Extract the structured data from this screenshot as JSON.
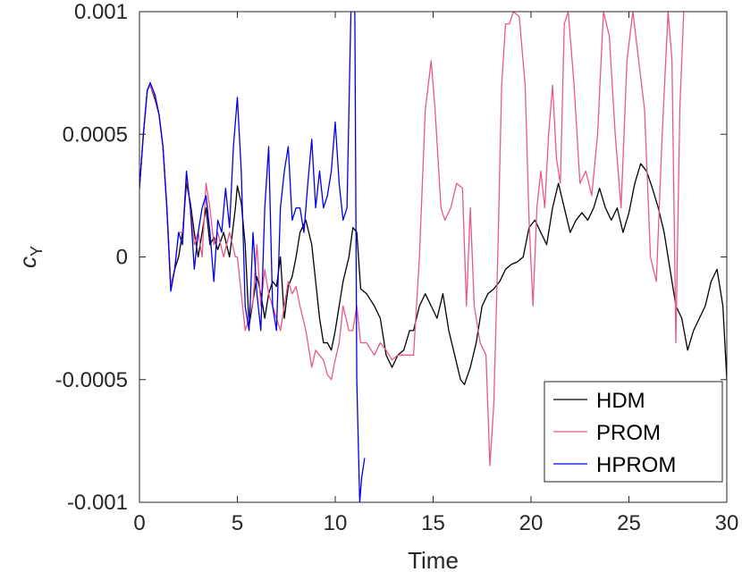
{
  "chart_data": {
    "type": "line",
    "xlabel": "Time",
    "ylabel_base": "c",
    "ylabel_sub": "Y",
    "xlim": [
      0,
      30
    ],
    "ylim": [
      -0.001,
      0.001
    ],
    "xticks": [
      0,
      5,
      10,
      15,
      20,
      25,
      30
    ],
    "xtick_labels": [
      "0",
      "5",
      "10",
      "15",
      "20",
      "25",
      "30"
    ],
    "yticks": [
      -0.001,
      -0.0005,
      0,
      0.0005,
      0.001
    ],
    "ytick_labels": [
      "-0.001",
      "-0.0005",
      "0",
      "0.0005",
      "0.001"
    ],
    "grid": false,
    "legend_position": "bottom-right",
    "series": [
      {
        "name": "HDM",
        "color": "#000000",
        "points": [
          [
            0,
            0.00028
          ],
          [
            0.2,
            0.0005
          ],
          [
            0.4,
            0.00068
          ],
          [
            0.55,
            0.0007
          ],
          [
            0.8,
            0.00064
          ],
          [
            1.0,
            0.00058
          ],
          [
            1.2,
            0.00045
          ],
          [
            1.4,
            0.0002
          ],
          [
            1.6,
            -0.00012
          ],
          [
            1.8,
            -5e-05
          ],
          [
            2.0,
            0.0
          ],
          [
            2.2,
            0.0001
          ],
          [
            2.4,
            0.0003
          ],
          [
            2.6,
            0.00022
          ],
          [
            2.8,
            0.0001
          ],
          [
            3.0,
            0.0
          ],
          [
            3.2,
            0.0001
          ],
          [
            3.4,
            0.0002
          ],
          [
            3.6,
            5e-05
          ],
          [
            3.8,
            8e-05
          ],
          [
            4.0,
            3e-05
          ],
          [
            4.3,
            0.0001
          ],
          [
            4.6,
            0.0
          ],
          [
            4.9,
            0.0002
          ],
          [
            5.0,
            0.00029
          ],
          [
            5.2,
            0.00022
          ],
          [
            5.4,
            5e-05
          ],
          [
            5.6,
            -0.00028
          ],
          [
            5.8,
            -0.00018
          ],
          [
            6.0,
            -8e-05
          ],
          [
            6.2,
            -0.00015
          ],
          [
            6.4,
            -0.00025
          ],
          [
            6.6,
            -0.00015
          ],
          [
            6.8,
            -0.0001
          ],
          [
            7.0,
            -0.00012
          ],
          [
            7.2,
            0.0
          ],
          [
            7.4,
            -0.00025
          ],
          [
            7.6,
            -0.00012
          ],
          [
            7.8,
            -8e-05
          ],
          [
            8.0,
            0.0
          ],
          [
            8.2,
            0.0001
          ],
          [
            8.5,
            0.00015
          ],
          [
            8.8,
            5e-05
          ],
          [
            9.0,
            -0.0001
          ],
          [
            9.2,
            -0.00025
          ],
          [
            9.4,
            -0.00035
          ],
          [
            9.6,
            -0.00035
          ],
          [
            9.8,
            -0.00038
          ],
          [
            10.0,
            -0.0003
          ],
          [
            10.2,
            -0.0002
          ],
          [
            10.4,
            -0.0001
          ],
          [
            10.7,
            0.0
          ],
          [
            10.9,
            0.00012
          ],
          [
            11.1,
            0.0001
          ],
          [
            11.3,
            -0.00013
          ],
          [
            11.6,
            -0.00015
          ],
          [
            12.0,
            -0.0002
          ],
          [
            12.3,
            -0.00025
          ],
          [
            12.6,
            -0.0004
          ],
          [
            12.9,
            -0.00045
          ],
          [
            13.2,
            -0.0004
          ],
          [
            13.5,
            -0.00038
          ],
          [
            13.8,
            -0.0003
          ],
          [
            14.0,
            -0.0003
          ],
          [
            14.3,
            -0.0002
          ],
          [
            14.6,
            -0.00015
          ],
          [
            14.9,
            -0.0002
          ],
          [
            15.2,
            -0.00025
          ],
          [
            15.5,
            -0.00015
          ],
          [
            15.8,
            -0.0003
          ],
          [
            16.1,
            -0.0004
          ],
          [
            16.4,
            -0.0005
          ],
          [
            16.6,
            -0.00052
          ],
          [
            16.9,
            -0.00045
          ],
          [
            17.2,
            -0.00035
          ],
          [
            17.5,
            -0.0002
          ],
          [
            17.8,
            -0.00015
          ],
          [
            18.1,
            -0.00013
          ],
          [
            18.4,
            -0.0001
          ],
          [
            18.7,
            -5e-05
          ],
          [
            19.0,
            -3e-05
          ],
          [
            19.3,
            -2e-05
          ],
          [
            19.6,
            0.0
          ],
          [
            19.9,
            0.00012
          ],
          [
            20.2,
            0.00015
          ],
          [
            20.5,
            0.0001
          ],
          [
            20.8,
            5e-05
          ],
          [
            21.1,
            0.0002
          ],
          [
            21.4,
            0.0003
          ],
          [
            21.7,
            0.0002
          ],
          [
            22.0,
            0.0001
          ],
          [
            22.3,
            0.00015
          ],
          [
            22.6,
            0.00018
          ],
          [
            22.9,
            0.00015
          ],
          [
            23.2,
            0.0002
          ],
          [
            23.5,
            0.00028
          ],
          [
            23.8,
            0.0002
          ],
          [
            24.1,
            0.00015
          ],
          [
            24.4,
            0.0002
          ],
          [
            24.7,
            0.0001
          ],
          [
            25.0,
            0.00018
          ],
          [
            25.3,
            0.0003
          ],
          [
            25.6,
            0.00038
          ],
          [
            25.9,
            0.00035
          ],
          [
            26.2,
            0.00028
          ],
          [
            26.5,
            0.0002
          ],
          [
            26.8,
            0.0001
          ],
          [
            27.1,
            -5e-05
          ],
          [
            27.4,
            -0.0002
          ],
          [
            27.7,
            -0.00025
          ],
          [
            28.0,
            -0.00038
          ],
          [
            28.3,
            -0.0003
          ],
          [
            28.6,
            -0.00025
          ],
          [
            28.9,
            -0.0002
          ],
          [
            29.2,
            -0.0001
          ],
          [
            29.5,
            -5e-05
          ],
          [
            29.8,
            -0.0002
          ],
          [
            30.0,
            -0.0005
          ]
        ]
      },
      {
        "name": "PROM",
        "color": "#e8588e",
        "points": [
          [
            0,
            0.00028
          ],
          [
            0.2,
            0.0005
          ],
          [
            0.4,
            0.00068
          ],
          [
            0.55,
            0.0007
          ],
          [
            0.8,
            0.00065
          ],
          [
            1.0,
            0.00058
          ],
          [
            1.2,
            0.00045
          ],
          [
            1.4,
            0.0002
          ],
          [
            1.6,
            -0.00012
          ],
          [
            1.8,
            -5e-05
          ],
          [
            2.0,
            0.0001
          ],
          [
            2.2,
            0.0001
          ],
          [
            2.4,
            0.00033
          ],
          [
            2.6,
            0.0002
          ],
          [
            2.8,
            5e-05
          ],
          [
            3.0,
            0.0001
          ],
          [
            3.2,
            0.0
          ],
          [
            3.4,
            0.0003
          ],
          [
            3.6,
            0.0002
          ],
          [
            3.8,
            5e-05
          ],
          [
            4.0,
            0.0001
          ],
          [
            4.3,
            0.0
          ],
          [
            4.6,
            0.0001
          ],
          [
            4.9,
            0.0
          ],
          [
            5.0,
            0.0
          ],
          [
            5.2,
            -0.00015
          ],
          [
            5.4,
            -0.0003
          ],
          [
            5.6,
            -0.00025
          ],
          [
            5.8,
            -0.00018
          ],
          [
            6.0,
            5e-05
          ],
          [
            6.2,
            -0.0002
          ],
          [
            6.4,
            -5e-05
          ],
          [
            6.6,
            -0.00015
          ],
          [
            6.8,
            -0.0002
          ],
          [
            7.0,
            -0.00025
          ],
          [
            7.2,
            -0.0003
          ],
          [
            7.4,
            -0.0002
          ],
          [
            7.6,
            -0.0001
          ],
          [
            7.8,
            -0.00015
          ],
          [
            8.0,
            -0.00012
          ],
          [
            8.2,
            -0.0002
          ],
          [
            8.5,
            -0.0003
          ],
          [
            8.8,
            -0.00045
          ],
          [
            9.0,
            -0.00038
          ],
          [
            9.2,
            -0.0004
          ],
          [
            9.4,
            -0.00042
          ],
          [
            9.6,
            -0.00048
          ],
          [
            9.8,
            -0.0005
          ],
          [
            10.0,
            -0.00042
          ],
          [
            10.2,
            -0.00035
          ],
          [
            10.4,
            -0.0002
          ],
          [
            10.7,
            -0.0003
          ],
          [
            10.9,
            -0.0003
          ],
          [
            11.1,
            -0.0002
          ],
          [
            11.3,
            -0.00035
          ],
          [
            11.6,
            -0.00035
          ],
          [
            12.0,
            -0.0004
          ],
          [
            12.3,
            -0.00035
          ],
          [
            12.6,
            -0.00038
          ],
          [
            12.9,
            -0.00042
          ],
          [
            13.2,
            -0.0004
          ],
          [
            13.5,
            -0.0004
          ],
          [
            13.8,
            -0.0004
          ],
          [
            14.0,
            -0.0004
          ],
          [
            14.3,
            0.0
          ],
          [
            14.6,
            0.0006
          ],
          [
            14.9,
            0.0008
          ],
          [
            15.1,
            0.0006
          ],
          [
            15.4,
            0.0002
          ],
          [
            15.6,
            0.00015
          ],
          [
            15.9,
            0.0002
          ],
          [
            16.2,
            0.0003
          ],
          [
            16.5,
            0.00028
          ],
          [
            16.7,
            -0.0002
          ],
          [
            16.9,
            0.0002
          ],
          [
            17.1,
            -0.0002
          ],
          [
            17.4,
            -0.00035
          ],
          [
            17.7,
            -0.0004
          ],
          [
            17.9,
            -0.00085
          ],
          [
            18.1,
            -0.0006
          ],
          [
            18.3,
            0.0
          ],
          [
            18.5,
            0.0007
          ],
          [
            18.7,
            0.00095
          ],
          [
            18.9,
            0.00095
          ],
          [
            19.1,
            0.001
          ],
          [
            19.4,
            0.00098
          ],
          [
            19.7,
            0.0007
          ],
          [
            19.9,
            0.00015
          ],
          [
            20.1,
            -0.0002
          ],
          [
            20.3,
            0.0002
          ],
          [
            20.5,
            0.00035
          ],
          [
            20.7,
            0.0002
          ],
          [
            20.9,
            0.0005
          ],
          [
            21.1,
            0.0007
          ],
          [
            21.3,
            0.0004
          ],
          [
            21.5,
            0.0003
          ],
          [
            21.7,
            0.00095
          ],
          [
            21.9,
            0.001
          ],
          [
            22.2,
            0.0007
          ],
          [
            22.5,
            0.0003
          ],
          [
            22.8,
            0.00035
          ],
          [
            23.1,
            0.00025
          ],
          [
            23.4,
            0.0005
          ],
          [
            23.7,
            0.001
          ],
          [
            24.0,
            0.0009
          ],
          [
            24.3,
            0.0005
          ],
          [
            24.6,
            0.0002
          ],
          [
            24.9,
            0.0008
          ],
          [
            25.2,
            0.001
          ],
          [
            25.5,
            0.0008
          ],
          [
            25.8,
            0.0006
          ],
          [
            26.1,
            0.0
          ],
          [
            26.4,
            -0.0001
          ],
          [
            26.7,
            0.0005
          ],
          [
            27.0,
            0.001
          ],
          [
            27.2,
            0.0008
          ],
          [
            27.4,
            -0.00035
          ],
          [
            27.6,
            0.0006
          ],
          [
            27.8,
            0.001
          ]
        ]
      },
      {
        "name": "HPROM",
        "color": "#0000e6",
        "points": [
          [
            0,
            0.00028
          ],
          [
            0.2,
            0.0005
          ],
          [
            0.4,
            0.00068
          ],
          [
            0.55,
            0.00071
          ],
          [
            0.8,
            0.00066
          ],
          [
            1.0,
            0.00058
          ],
          [
            1.2,
            0.00045
          ],
          [
            1.4,
            0.0002
          ],
          [
            1.6,
            -0.00014
          ],
          [
            1.8,
            -5e-05
          ],
          [
            2.0,
            0.0001
          ],
          [
            2.2,
            5e-05
          ],
          [
            2.4,
            0.00035
          ],
          [
            2.6,
            0.0002
          ],
          [
            2.8,
            -5e-05
          ],
          [
            3.0,
            0.0001
          ],
          [
            3.2,
            0.0002
          ],
          [
            3.4,
            0.00025
          ],
          [
            3.6,
            0.0001
          ],
          [
            3.8,
            -0.0001
          ],
          [
            4.0,
            0.00015
          ],
          [
            4.2,
            0.0001
          ],
          [
            4.4,
            0.00028
          ],
          [
            4.6,
            0.00012
          ],
          [
            4.8,
            0.00045
          ],
          [
            5.0,
            0.00065
          ],
          [
            5.2,
            0.00035
          ],
          [
            5.4,
            -0.0002
          ],
          [
            5.6,
            -0.0003
          ],
          [
            5.8,
            0.0001
          ],
          [
            6.0,
            -0.00015
          ],
          [
            6.2,
            -0.0003
          ],
          [
            6.4,
            0.0002
          ],
          [
            6.6,
            0.00045
          ],
          [
            6.8,
            -0.0002
          ],
          [
            7.0,
            -0.0003
          ],
          [
            7.2,
            0.0002
          ],
          [
            7.4,
            0.00035
          ],
          [
            7.6,
            0.00045
          ],
          [
            7.8,
            0.00015
          ],
          [
            8.0,
            0.0002
          ],
          [
            8.2,
            0.0002
          ],
          [
            8.4,
            0.0001
          ],
          [
            8.6,
            0.0003
          ],
          [
            8.8,
            0.00048
          ],
          [
            9.0,
            0.0002
          ],
          [
            9.2,
            0.00035
          ],
          [
            9.4,
            0.0002
          ],
          [
            9.6,
            0.00025
          ],
          [
            9.8,
            0.00035
          ],
          [
            10.0,
            0.00055
          ],
          [
            10.2,
            0.0003
          ],
          [
            10.4,
            0.00015
          ],
          [
            10.6,
            0.0002
          ],
          [
            10.8,
            0.001
          ],
          [
            11.0,
            0.001
          ],
          [
            11.1,
            -0.0005
          ],
          [
            11.25,
            -0.001
          ],
          [
            11.35,
            -0.0009
          ],
          [
            11.5,
            -0.00082
          ]
        ]
      }
    ]
  }
}
